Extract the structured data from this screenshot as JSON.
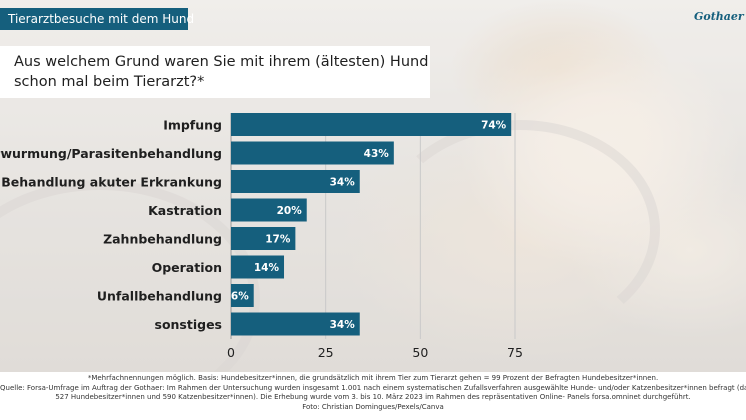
{
  "header": {
    "tag_label": "Tierarztbesuche mit dem Hund",
    "logo_text": "Gothaer"
  },
  "question": {
    "line1": "Aus welchem Grund waren Sie mit ihrem (ältesten) Hund",
    "line2": "schon mal beim Tierarzt?*"
  },
  "chart_data": {
    "type": "bar",
    "orientation": "horizontal",
    "categories": [
      "Impfung",
      "Entwurmung/Parasitenbehandlung",
      "Behandlung akuter Erkrankung",
      "Kastration",
      "Zahnbehandlung",
      "Operation",
      "Unfallbehandlung",
      "sonstiges"
    ],
    "values": [
      74,
      43,
      34,
      20,
      17,
      14,
      6,
      34
    ],
    "value_labels": [
      "74%",
      "43%",
      "34%",
      "20%",
      "17%",
      "14%",
      "6%",
      "34%"
    ],
    "x_ticks": [
      0,
      25,
      50,
      75
    ],
    "x_tick_labels": [
      "0",
      "25",
      "50",
      "75"
    ],
    "xlim": [
      0,
      75
    ],
    "grid": true,
    "bar_color": "#155f7d",
    "label_color": "#ffffff"
  },
  "footer": {
    "line1": "*Mehrfachnennungen möglich. Basis: Hundebesitzer*innen, die grundsätzlich mit ihrem Tier zum Tierarzt gehen = 99 Prozent der Befragten Hundebesitzer*innen.",
    "line2": "Quelle: Forsa-Umfrage im Auftrag der Gothaer: Im Rahmen der Untersuchung wurden insgesamt 1.001 nach einem systematischen Zufallsverfahren ausgewählte Hunde- und/oder Katzenbesitzer*innen befragt (darunter",
    "line3": "527 Hundebesitzer*innen und 590 Katzenbesitzer*innen). Die Erhebung wurde vom 3. bis 10. März 2023 im Rahmen des repräsentativen Online- Panels forsa.omninet durchgeführt.",
    "line4": "Foto: Christian Domingues/Pexels/Canva"
  }
}
